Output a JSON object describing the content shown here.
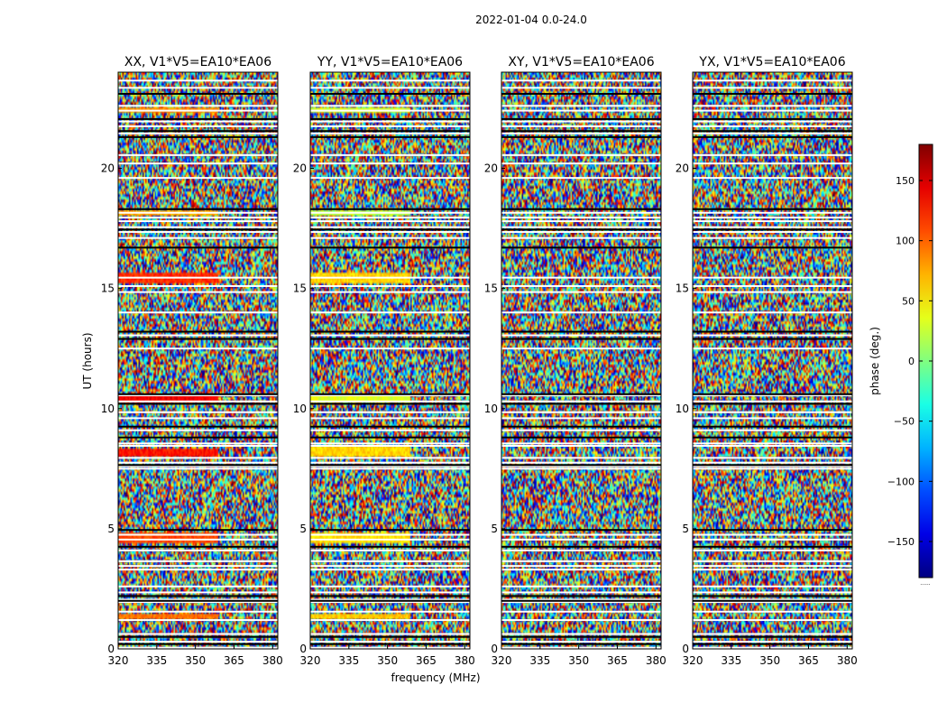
{
  "figure": {
    "suptitle": "2022-01-04 0.0-24.0",
    "xlabel": "frequency (MHz)",
    "ylabel": "UT (hours)",
    "colorbar_label": "phase (deg.)",
    "colorbar_extra": "......"
  },
  "chart_data": {
    "type": "heatmap",
    "colormap": "jet",
    "xlim": [
      320,
      382
    ],
    "ylim": [
      0,
      24
    ],
    "xticks": [
      320,
      335,
      350,
      365,
      380
    ],
    "yticks": [
      0,
      5,
      10,
      15,
      20
    ],
    "clim": [
      -180,
      180
    ],
    "colorbar_ticks": [
      150,
      100,
      50,
      0,
      -50,
      -100,
      -150
    ],
    "colorbar_tick_labels": [
      "150",
      "100",
      "50",
      "0",
      "−50",
      "−100",
      "−150"
    ],
    "blank_rows_hours": [
      0.05,
      0.3,
      0.62,
      1.2,
      1.55,
      1.95,
      2.05,
      2.35,
      2.6,
      3.3,
      3.45,
      3.65,
      4.1,
      4.55,
      4.75,
      7.5,
      7.6,
      7.75,
      7.95,
      8.45,
      8.55,
      9.1,
      9.6,
      9.85,
      10.3,
      10.55,
      12.5,
      13.05,
      14.0,
      14.85,
      15.1,
      15.45,
      17.1,
      17.35,
      17.55,
      17.8,
      17.95,
      18.15,
      19.6,
      20.2,
      20.55,
      21.45,
      21.75,
      21.95,
      22.4,
      22.6,
      23.35,
      23.65
    ],
    "dark_rows_hours": [
      0.2,
      0.5,
      2.0,
      2.2,
      4.25,
      4.95,
      7.65,
      8.8,
      9.25,
      10.2,
      10.6,
      12.9,
      13.2,
      16.7,
      17.45,
      18.3,
      21.3,
      21.55,
      22.05,
      23.1
    ],
    "panels": [
      {
        "title": "XX, V1*V5=EA10*EA06",
        "product": "XX",
        "coherent_bands_hours": [
          [
            1.2,
            1.5,
            95
          ],
          [
            4.4,
            4.8,
            110
          ],
          [
            8.0,
            8.3,
            130
          ],
          [
            10.3,
            10.55,
            140
          ],
          [
            15.2,
            15.7,
            120
          ],
          [
            18.05,
            18.25,
            75
          ],
          [
            22.35,
            22.55,
            85
          ]
        ]
      },
      {
        "title": "YY, V1*V5=EA10*EA06",
        "product": "YY",
        "coherent_bands_hours": [
          [
            1.2,
            1.5,
            65
          ],
          [
            4.4,
            4.85,
            55
          ],
          [
            8.0,
            8.4,
            60
          ],
          [
            10.3,
            10.55,
            35
          ],
          [
            15.2,
            15.7,
            60
          ],
          [
            18.05,
            18.25,
            20
          ],
          [
            22.35,
            22.55,
            30
          ]
        ]
      },
      {
        "title": "XY, V1*V5=EA10*EA06",
        "product": "XY",
        "coherent_bands_hours": []
      },
      {
        "title": "YX, V1*V5=EA10*EA06",
        "product": "YX",
        "coherent_bands_hours": []
      }
    ]
  }
}
